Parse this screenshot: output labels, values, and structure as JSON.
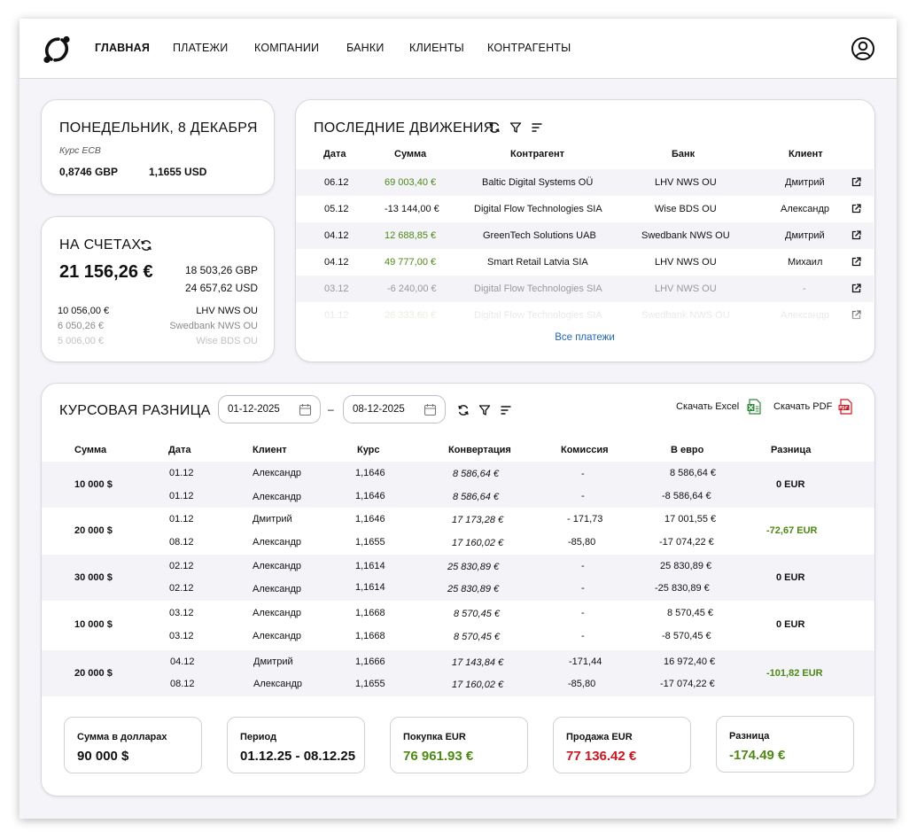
{
  "nav": {
    "items": [
      {
        "label": "ГЛАВНАЯ"
      },
      {
        "label": "ПЛАТЕЖИ"
      },
      {
        "label": "КОМПАНИИ"
      },
      {
        "label": "БАНКИ"
      },
      {
        "label": "КЛИЕНТЫ"
      },
      {
        "label": "КОНТРАГЕНТЫ"
      }
    ]
  },
  "today": {
    "title": "ПОНЕДЕЛЬНИК, 8 ДЕКАБРЯ",
    "rate_label": "Курс ECB",
    "gbp": "0,8746 GBP",
    "usd": "1,1655 USD"
  },
  "accounts": {
    "title": "НА СЧЕТАХ",
    "total": "21 156,26 €",
    "gbp_total": "18 503,26 GBP",
    "usd_total": "24 657,62 USD",
    "rows": [
      {
        "amount": "10 056,00 €",
        "bank": "LHV NWS OU"
      },
      {
        "amount": "6 050,26 €",
        "bank": "Swedbank NWS OU"
      },
      {
        "amount": "5 006,00 €",
        "bank": "Wise BDS OU"
      }
    ]
  },
  "movements": {
    "title": "ПОСЛЕДНИЕ ДВИЖЕНИЯ",
    "columns": {
      "date": "Дата",
      "amount": "Сумма",
      "counterparty": "Контрагент",
      "bank": "Банк",
      "client": "Клиент"
    },
    "rows": [
      {
        "date": "06.12",
        "amount": "69 003,40 €",
        "counterparty": "Baltic Digital Systems OÜ",
        "bank": "LHV NWS OU",
        "client": "Дмитрий"
      },
      {
        "date": "05.12",
        "amount": "-13 144,00 €",
        "counterparty": "Digital Flow Technologies SIA",
        "bank": "Wise BDS OU",
        "client": "Александр"
      },
      {
        "date": "04.12",
        "amount": "12 688,85 €",
        "counterparty": "GreenTech Solutions UAB",
        "bank": "Swedbank NWS OU",
        "client": "Дмитрий"
      },
      {
        "date": "04.12",
        "amount": "49 777,00 €",
        "counterparty": "Smart Retail Latvia SIA",
        "bank": "LHV NWS OU",
        "client": "Михаил"
      },
      {
        "date": "03.12",
        "amount": "-6 240,00 €",
        "counterparty": "Digital Flow Technologies SIA",
        "bank": "LHV NWS OU",
        "client": "-"
      },
      {
        "date": "01.12",
        "amount": "26 333,60 €",
        "counterparty": "Digital Flow Technologies SIA",
        "bank": "Swedbank NWS OU",
        "client": "Александр"
      }
    ],
    "all_link": "Все платежи"
  },
  "exchange": {
    "title": "КУРСОВАЯ РАЗНИЦА",
    "date_from": "01-12-2025",
    "date_to": "08-12-2025",
    "date_sep": "–",
    "download_excel": "Скачать Excel",
    "download_pdf": "Скачать PDF",
    "columns": {
      "sum": "Сумма",
      "date": "Дата",
      "client": "Клиент",
      "rate": "Курс",
      "conversion": "Конвертация",
      "fee": "Комиссия",
      "eur": "В евро",
      "diff": "Разница"
    },
    "groups": [
      {
        "sum": "10 000 $",
        "diff": "0 EUR",
        "rows": [
          {
            "date": "01.12",
            "client": "Александр",
            "rate": "1,1646",
            "conversion": "8 586,64 €",
            "fee": "-",
            "eur": "8 586,64 €"
          },
          {
            "date": "01.12",
            "client": "Александр",
            "rate": "1,1646",
            "conversion": "8 586,64 €",
            "fee": "-",
            "eur": "-8 586,64 €"
          }
        ]
      },
      {
        "sum": "20 000 $",
        "diff": "-72,67 EUR",
        "rows": [
          {
            "date": "01.12",
            "client": "Дмитрий",
            "rate": "1,1646",
            "conversion": "17 173,28 €",
            "fee": "- 171,73",
            "eur": "17 001,55 €"
          },
          {
            "date": "08.12",
            "client": "Александр",
            "rate": "1,1655",
            "conversion": "17 160,02 €",
            "fee": "-85,80",
            "eur": "-17 074,22 €"
          }
        ]
      },
      {
        "sum": "30 000 $",
        "diff": "0 EUR",
        "rows": [
          {
            "date": "02.12",
            "client": "Александр",
            "rate": "1,1614",
            "conversion": "25 830,89 €",
            "fee": "-",
            "eur": "25 830,89 €"
          },
          {
            "date": "02.12",
            "client": "Александр",
            "rate": "1,1614",
            "conversion": "25 830,89 €",
            "fee": "-",
            "eur": "-25 830,89 €"
          }
        ]
      },
      {
        "sum": "10 000 $",
        "diff": "0 EUR",
        "rows": [
          {
            "date": "03.12",
            "client": "Александр",
            "rate": "1,1668",
            "conversion": "8 570,45 €",
            "fee": "-",
            "eur": "8 570,45 €"
          },
          {
            "date": "03.12",
            "client": "Александр",
            "rate": "1,1668",
            "conversion": "8 570,45 €",
            "fee": "-",
            "eur": "-8 570,45 €"
          }
        ]
      },
      {
        "sum": "20 000 $",
        "diff": "-101,82 EUR",
        "rows": [
          {
            "date": "04.12",
            "client": "Дмитрий",
            "rate": "1,1666",
            "conversion": "17 143,84 €",
            "fee": "-171,44",
            "eur": "16 972,40 €"
          },
          {
            "date": "08.12",
            "client": "Александр",
            "rate": "1,1655",
            "conversion": "17 160,02 €",
            "fee": "-85,80",
            "eur": "-17 074,22 €"
          }
        ]
      }
    ],
    "summary": [
      {
        "label": "Сумма в долларах",
        "value": "90 000 $",
        "color": "#111111"
      },
      {
        "label": "Период",
        "value": "01.12.25 - 08.12.25",
        "color": "#111111"
      },
      {
        "label": "Покупка EUR",
        "value": "76 961.93 €",
        "color": "#4c8a12"
      },
      {
        "label": "Продажа EUR",
        "value": "77 136.42 €",
        "color": "#d3141e"
      },
      {
        "label": "Разница",
        "value": "-174.49 €",
        "color": "#4c8a12"
      }
    ]
  },
  "colors": {
    "positive": "#4c8a12",
    "negative": "#d3141e",
    "link": "#1f64c8"
  },
  "icons": [
    "logo-icon",
    "user-icon",
    "refresh-icon",
    "filter-icon",
    "sort-icon",
    "external-link-icon",
    "calendar-icon",
    "excel-icon",
    "pdf-icon"
  ]
}
